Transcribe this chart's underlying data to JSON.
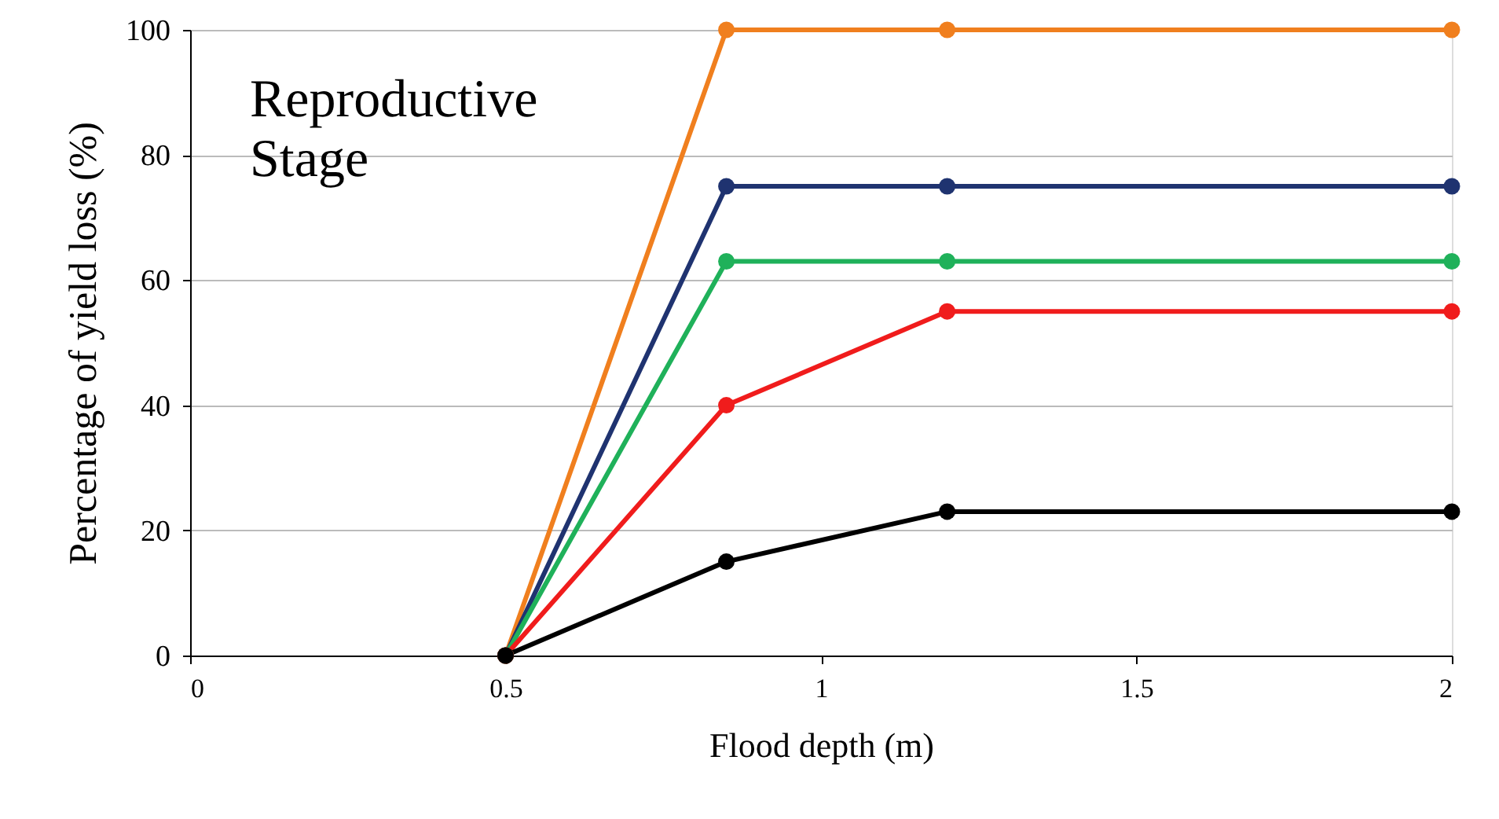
{
  "chart_data": {
    "type": "line",
    "xlabel": "Flood depth (m)",
    "ylabel": "Percentage of yield loss (%)",
    "annotations": [
      "Reproductive Stage"
    ],
    "x": [
      0.5,
      0.85,
      1.2,
      2
    ],
    "series": [
      {
        "color": "#f07f1e",
        "values": [
          0,
          100,
          100,
          100
        ]
      },
      {
        "color": "#1f3370",
        "values": [
          0,
          75,
          75,
          75
        ]
      },
      {
        "color": "#1fb15a",
        "values": [
          0,
          63,
          63,
          63
        ]
      },
      {
        "color": "#f01c1c",
        "values": [
          0,
          40,
          55,
          55
        ]
      },
      {
        "color": "#000000",
        "values": [
          0,
          15,
          23,
          23
        ]
      }
    ],
    "xlim": [
      0,
      2
    ],
    "xticks": [
      0,
      0.5,
      1,
      1.5,
      2
    ],
    "ylim": [
      0,
      100
    ],
    "yticks": [
      0,
      20,
      40,
      60,
      80,
      100
    ],
    "grid": "y",
    "legend": false,
    "marker": "circle",
    "line_style": "solid"
  }
}
